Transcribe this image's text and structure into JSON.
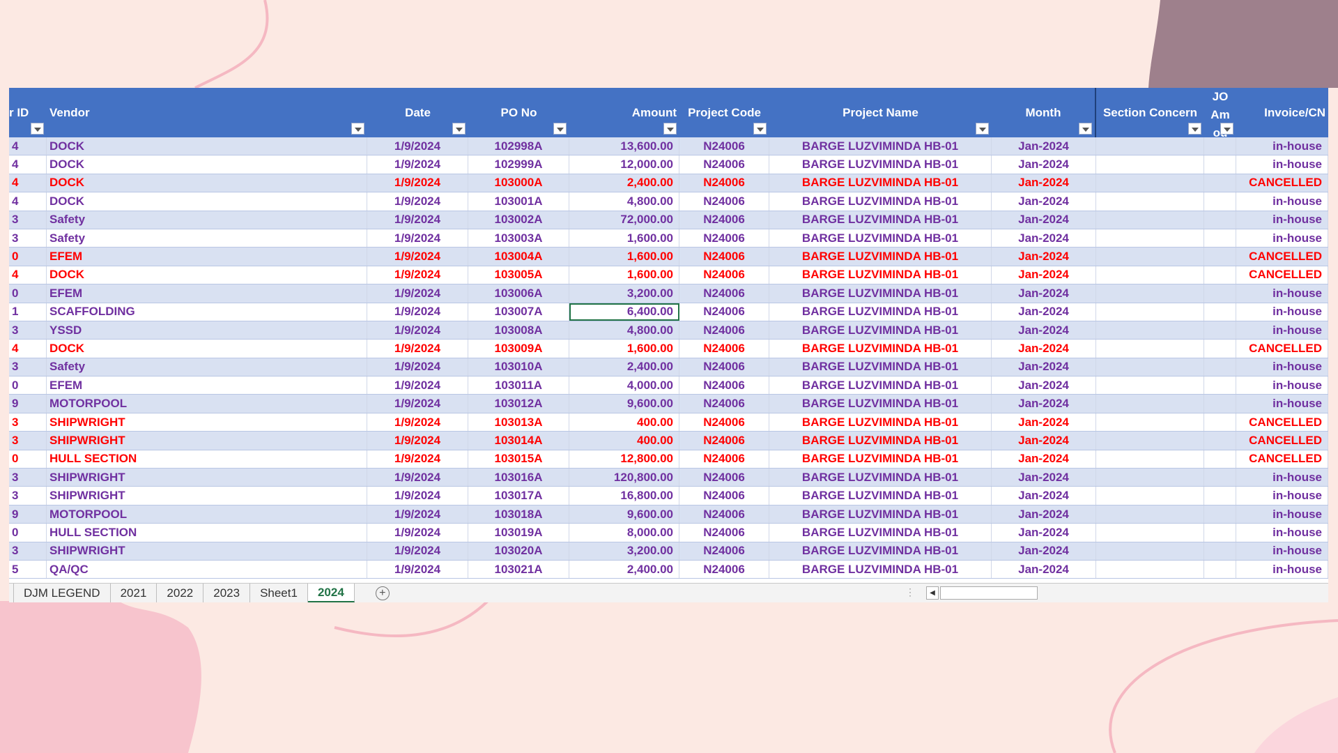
{
  "headers": {
    "vendor_id": "r ID",
    "vendor": "Vendor",
    "date": "Date",
    "po_no": "PO No",
    "amount": "Amount",
    "project_code": "Project Code",
    "project_name": "Project Name",
    "month": "Month",
    "section_concern": "Section Concern",
    "jo_amount_line1": "JO",
    "jo_amount_line2": "Am",
    "jo_amount_line3": "ou",
    "invoice": "Invoice/CN"
  },
  "rows": [
    {
      "id": "4",
      "vendor": "DOCK",
      "date": "1/9/2024",
      "po": "102998A",
      "amount": "13,600.00",
      "code": "N24006",
      "project": "BARGE LUZVIMINDA HB-01",
      "month": "Jan-2024",
      "invoice": "in-house",
      "status": "pending"
    },
    {
      "id": "4",
      "vendor": "DOCK",
      "date": "1/9/2024",
      "po": "102999A",
      "amount": "12,000.00",
      "code": "N24006",
      "project": "BARGE LUZVIMINDA HB-01",
      "month": "Jan-2024",
      "invoice": "in-house",
      "status": "pending"
    },
    {
      "id": "4",
      "vendor": "DOCK",
      "date": "1/9/2024",
      "po": "103000A",
      "amount": "2,400.00",
      "code": "N24006",
      "project": "BARGE LUZVIMINDA HB-01",
      "month": "Jan-2024",
      "invoice": "CANCELLED",
      "status": "cancel"
    },
    {
      "id": "4",
      "vendor": "DOCK",
      "date": "1/9/2024",
      "po": "103001A",
      "amount": "4,800.00",
      "code": "N24006",
      "project": "BARGE LUZVIMINDA HB-01",
      "month": "Jan-2024",
      "invoice": "in-house",
      "status": "pending"
    },
    {
      "id": "3",
      "vendor": "Safety",
      "date": "1/9/2024",
      "po": "103002A",
      "amount": "72,000.00",
      "code": "N24006",
      "project": "BARGE LUZVIMINDA HB-01",
      "month": "Jan-2024",
      "invoice": "in-house",
      "status": "pending"
    },
    {
      "id": "3",
      "vendor": "Safety",
      "date": "1/9/2024",
      "po": "103003A",
      "amount": "1,600.00",
      "code": "N24006",
      "project": "BARGE LUZVIMINDA HB-01",
      "month": "Jan-2024",
      "invoice": "in-house",
      "status": "pending"
    },
    {
      "id": "0",
      "vendor": "EFEM",
      "date": "1/9/2024",
      "po": "103004A",
      "amount": "1,600.00",
      "code": "N24006",
      "project": "BARGE LUZVIMINDA HB-01",
      "month": "Jan-2024",
      "invoice": "CANCELLED",
      "status": "cancel"
    },
    {
      "id": "4",
      "vendor": "DOCK",
      "date": "1/9/2024",
      "po": "103005A",
      "amount": "1,600.00",
      "code": "N24006",
      "project": "BARGE LUZVIMINDA HB-01",
      "month": "Jan-2024",
      "invoice": "CANCELLED",
      "status": "cancel"
    },
    {
      "id": "0",
      "vendor": "EFEM",
      "date": "1/9/2024",
      "po": "103006A",
      "amount": "3,200.00",
      "code": "N24006",
      "project": "BARGE LUZVIMINDA HB-01",
      "month": "Jan-2024",
      "invoice": "in-house",
      "status": "pending"
    },
    {
      "id": "1",
      "vendor": "SCAFFOLDING",
      "date": "1/9/2024",
      "po": "103007A",
      "amount": "6,400.00",
      "code": "N24006",
      "project": "BARGE LUZVIMINDA HB-01",
      "month": "Jan-2024",
      "invoice": "in-house",
      "status": "pending"
    },
    {
      "id": "3",
      "vendor": "YSSD",
      "date": "1/9/2024",
      "po": "103008A",
      "amount": "4,800.00",
      "code": "N24006",
      "project": "BARGE LUZVIMINDA HB-01",
      "month": "Jan-2024",
      "invoice": "in-house",
      "status": "pending"
    },
    {
      "id": "4",
      "vendor": "DOCK",
      "date": "1/9/2024",
      "po": "103009A",
      "amount": "1,600.00",
      "code": "N24006",
      "project": "BARGE LUZVIMINDA HB-01",
      "month": "Jan-2024",
      "invoice": "CANCELLED",
      "status": "cancel"
    },
    {
      "id": "3",
      "vendor": "Safety",
      "date": "1/9/2024",
      "po": "103010A",
      "amount": "2,400.00",
      "code": "N24006",
      "project": "BARGE LUZVIMINDA HB-01",
      "month": "Jan-2024",
      "invoice": "in-house",
      "status": "pending"
    },
    {
      "id": "0",
      "vendor": "EFEM",
      "date": "1/9/2024",
      "po": "103011A",
      "amount": "4,000.00",
      "code": "N24006",
      "project": "BARGE LUZVIMINDA HB-01",
      "month": "Jan-2024",
      "invoice": "in-house",
      "status": "pending"
    },
    {
      "id": "9",
      "vendor": "MOTORPOOL",
      "date": "1/9/2024",
      "po": "103012A",
      "amount": "9,600.00",
      "code": "N24006",
      "project": "BARGE LUZVIMINDA HB-01",
      "month": "Jan-2024",
      "invoice": "in-house",
      "status": "pending"
    },
    {
      "id": "3",
      "vendor": "SHIPWRIGHT",
      "date": "1/9/2024",
      "po": "103013A",
      "amount": "400.00",
      "code": "N24006",
      "project": "BARGE LUZVIMINDA HB-01",
      "month": "Jan-2024",
      "invoice": "CANCELLED",
      "status": "cancel"
    },
    {
      "id": "3",
      "vendor": "SHIPWRIGHT",
      "date": "1/9/2024",
      "po": "103014A",
      "amount": "400.00",
      "code": "N24006",
      "project": "BARGE LUZVIMINDA HB-01",
      "month": "Jan-2024",
      "invoice": "CANCELLED",
      "status": "cancel"
    },
    {
      "id": "0",
      "vendor": "HULL SECTION",
      "date": "1/9/2024",
      "po": "103015A",
      "amount": "12,800.00",
      "code": "N24006",
      "project": "BARGE LUZVIMINDA HB-01",
      "month": "Jan-2024",
      "invoice": "CANCELLED",
      "status": "cancel"
    },
    {
      "id": "3",
      "vendor": "SHIPWRIGHT",
      "date": "1/9/2024",
      "po": "103016A",
      "amount": "120,800.00",
      "code": "N24006",
      "project": "BARGE LUZVIMINDA HB-01",
      "month": "Jan-2024",
      "invoice": "in-house",
      "status": "pending"
    },
    {
      "id": "3",
      "vendor": "SHIPWRIGHT",
      "date": "1/9/2024",
      "po": "103017A",
      "amount": "16,800.00",
      "code": "N24006",
      "project": "BARGE LUZVIMINDA HB-01",
      "month": "Jan-2024",
      "invoice": "in-house",
      "status": "pending"
    },
    {
      "id": "9",
      "vendor": "MOTORPOOL",
      "date": "1/9/2024",
      "po": "103018A",
      "amount": "9,600.00",
      "code": "N24006",
      "project": "BARGE LUZVIMINDA HB-01",
      "month": "Jan-2024",
      "invoice": "in-house",
      "status": "pending"
    },
    {
      "id": "0",
      "vendor": "HULL SECTION",
      "date": "1/9/2024",
      "po": "103019A",
      "amount": "8,000.00",
      "code": "N24006",
      "project": "BARGE LUZVIMINDA HB-01",
      "month": "Jan-2024",
      "invoice": "in-house",
      "status": "pending"
    },
    {
      "id": "3",
      "vendor": "SHIPWRIGHT",
      "date": "1/9/2024",
      "po": "103020A",
      "amount": "3,200.00",
      "code": "N24006",
      "project": "BARGE LUZVIMINDA HB-01",
      "month": "Jan-2024",
      "invoice": "in-house",
      "status": "pending"
    },
    {
      "id": "5",
      "vendor": "QA/QC",
      "date": "1/9/2024",
      "po": "103021A",
      "amount": "2,400.00",
      "code": "N24006",
      "project": "BARGE LUZVIMINDA HB-01",
      "month": "Jan-2024",
      "invoice": "in-house",
      "status": "pending"
    }
  ],
  "selected_cell": {
    "row": 9,
    "column": "amount"
  },
  "sheet_tabs": [
    "DJM LEGEND",
    "2021",
    "2022",
    "2023",
    "Sheet1",
    "2024"
  ],
  "active_tab": "2024",
  "add_sheet_icon": "+",
  "colors": {
    "header_bg": "#4472c4",
    "band_row": "#d9e1f2",
    "pending_text": "#7030a0",
    "cancelled_text": "#ff0000",
    "active_tab": "#217346",
    "background": "#fce9e3"
  }
}
